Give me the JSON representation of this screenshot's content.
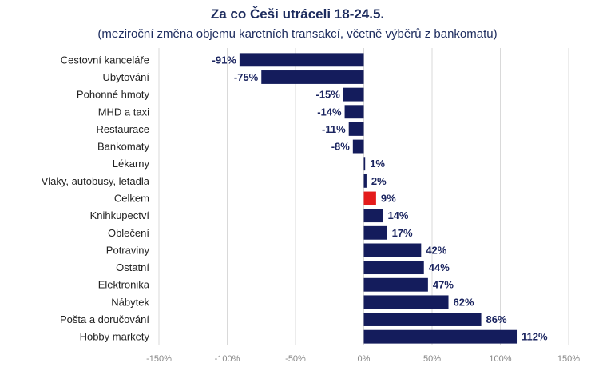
{
  "chart_data": {
    "type": "bar",
    "orientation": "horizontal",
    "title": "Za co Češi utráceli 18-24.5.",
    "subtitle": "(meziroční změna objemu karetních transakcí, včetně výběrů z bankomatu)",
    "categories": [
      "Cestovní kanceláře",
      "Ubytování",
      "Pohonné hmoty",
      "MHD a taxi",
      "Restaurace",
      "Bankomaty",
      "Lékarny",
      "Vlaky, autobusy, letadla",
      "Celkem",
      "Knihkupectví",
      "Oblečení",
      "Potraviny",
      "Ostatní",
      "Elektronika",
      "Nábytek",
      "Pošta a doručování",
      "Hobby markety"
    ],
    "values": [
      -91,
      -75,
      -15,
      -14,
      -11,
      -8,
      1,
      2,
      9,
      14,
      17,
      42,
      44,
      47,
      62,
      86,
      112
    ],
    "value_labels": [
      "-91%",
      "-75%",
      "-15%",
      "-14%",
      "-11%",
      "-8%",
      "1%",
      "2%",
      "9%",
      "14%",
      "17%",
      "42%",
      "44%",
      "47%",
      "62%",
      "86%",
      "112%"
    ],
    "highlight_category": "Celkem",
    "xlim": [
      -150,
      150
    ],
    "x_ticks": [
      -150,
      -100,
      -50,
      0,
      50,
      100,
      150
    ],
    "x_tick_labels": [
      "-150%",
      "-100%",
      "-50%",
      "0%",
      "50%",
      "100%",
      "150%"
    ],
    "grid": true,
    "colors": {
      "bar": "#141c5c",
      "highlight": "#e41b1b",
      "grid": "#d9d9d9",
      "label": "#1b2560"
    }
  }
}
